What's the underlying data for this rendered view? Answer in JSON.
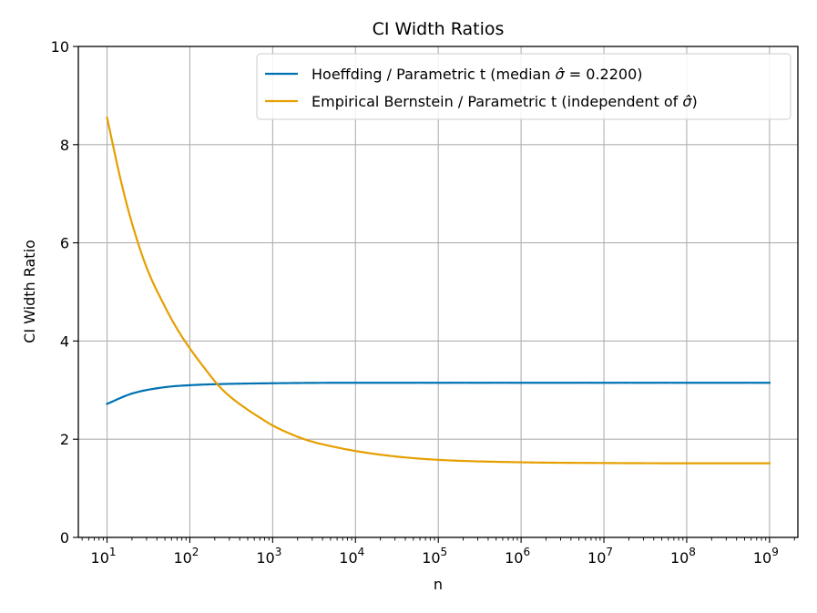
{
  "chart_data": {
    "type": "line",
    "title": "CI Width Ratios",
    "xlabel": "n",
    "ylabel": "CI Width Ratio",
    "xscale": "log",
    "xlim": [
      4.5,
      2200000000.0
    ],
    "ylim": [
      0,
      10
    ],
    "grid": true,
    "legend_position": "top-right",
    "y_ticks": [
      0,
      2,
      4,
      6,
      8,
      10
    ],
    "y_tick_labels": [
      "0",
      "2",
      "4",
      "6",
      "8",
      "10"
    ],
    "x_tick_exponents": [
      1,
      2,
      3,
      4,
      5,
      6,
      7,
      8,
      9
    ],
    "x_tick_base": "10",
    "series": [
      {
        "name": "Hoeffding / Parametric t (median σ̂ = 0.2200)",
        "legend_label": {
          "prefix": "Hoeffding / Parametric t (median ",
          "symbol": "σ̂",
          "suffix": " = 0.2200)"
        },
        "color": "#0072b2",
        "x": [
          10,
          20,
          50,
          100,
          200,
          1000,
          10000,
          100000,
          1000000,
          10000000,
          100000000,
          1000000000
        ],
        "y": [
          2.72,
          2.93,
          3.06,
          3.1,
          3.12,
          3.14,
          3.15,
          3.15,
          3.15,
          3.15,
          3.15,
          3.15
        ]
      },
      {
        "name": "Empirical Bernstein / Parametric t (independent of σ̂)",
        "legend_label": {
          "prefix": "Empirical Bernstein / Parametric t (independent of ",
          "symbol": "σ̂",
          "suffix": ")"
        },
        "color": "#e69f00",
        "x": [
          10,
          15,
          20,
          30,
          50,
          70,
          100,
          150,
          220,
          300,
          500,
          700,
          1000,
          2000,
          3000,
          5000,
          10000,
          30000,
          100000,
          1000000,
          10000000,
          100000000,
          1000000000
        ],
        "y": [
          8.55,
          7.2,
          6.4,
          5.5,
          4.7,
          4.25,
          3.85,
          3.45,
          3.1,
          2.88,
          2.6,
          2.44,
          2.28,
          2.05,
          1.95,
          1.86,
          1.76,
          1.65,
          1.58,
          1.53,
          1.515,
          1.51,
          1.51
        ]
      }
    ]
  }
}
